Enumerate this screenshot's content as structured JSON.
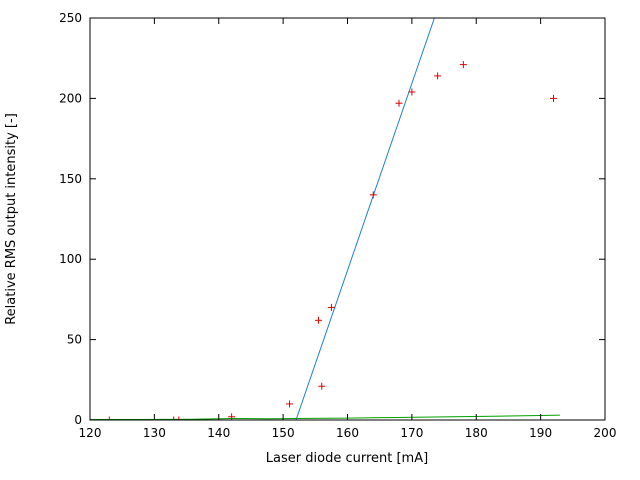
{
  "chart_data": {
    "type": "scatter",
    "title": "",
    "xlabel": "Laser diode current [mA]",
    "ylabel": "Relative RMS output intensity [-]",
    "xlim": [
      120,
      200
    ],
    "ylim": [
      0,
      250
    ],
    "x_ticks": [
      120,
      130,
      140,
      150,
      160,
      170,
      180,
      190,
      200
    ],
    "y_ticks": [
      0,
      50,
      100,
      150,
      200,
      250
    ],
    "grid": false,
    "legend_position": "none",
    "axis_color": "#000000",
    "background_color": "#ffffff",
    "series": [
      {
        "name": "measured-intensity-points",
        "render": "points",
        "marker": "plus",
        "color": "#dd0000",
        "points": [
          [
            123,
            0
          ],
          [
            133,
            0
          ],
          [
            133.8,
            0
          ],
          [
            142,
            2
          ],
          [
            151,
            10
          ],
          [
            156,
            21
          ],
          [
            155.5,
            62
          ],
          [
            157.5,
            70
          ],
          [
            164,
            140
          ],
          [
            168,
            197
          ],
          [
            170,
            204
          ],
          [
            174,
            214
          ],
          [
            178,
            221
          ],
          [
            192,
            200
          ]
        ]
      },
      {
        "name": "linear-threshold-fit-line",
        "render": "line",
        "color": "#1e7fd6",
        "points": [
          [
            152,
            0
          ],
          [
            173.5,
            250
          ]
        ]
      },
      {
        "name": "below-threshold-baseline-line",
        "render": "line",
        "color": "#00a000",
        "points": [
          [
            120,
            0.3
          ],
          [
            128,
            0.3
          ],
          [
            136,
            0.5
          ],
          [
            142,
            0.9
          ],
          [
            148,
            0.8
          ],
          [
            154,
            1.0
          ],
          [
            160,
            1.2
          ],
          [
            166,
            1.5
          ],
          [
            172,
            1.8
          ],
          [
            178,
            2.1
          ],
          [
            184,
            2.4
          ],
          [
            190,
            2.8
          ],
          [
            193,
            3.0
          ]
        ]
      }
    ]
  }
}
